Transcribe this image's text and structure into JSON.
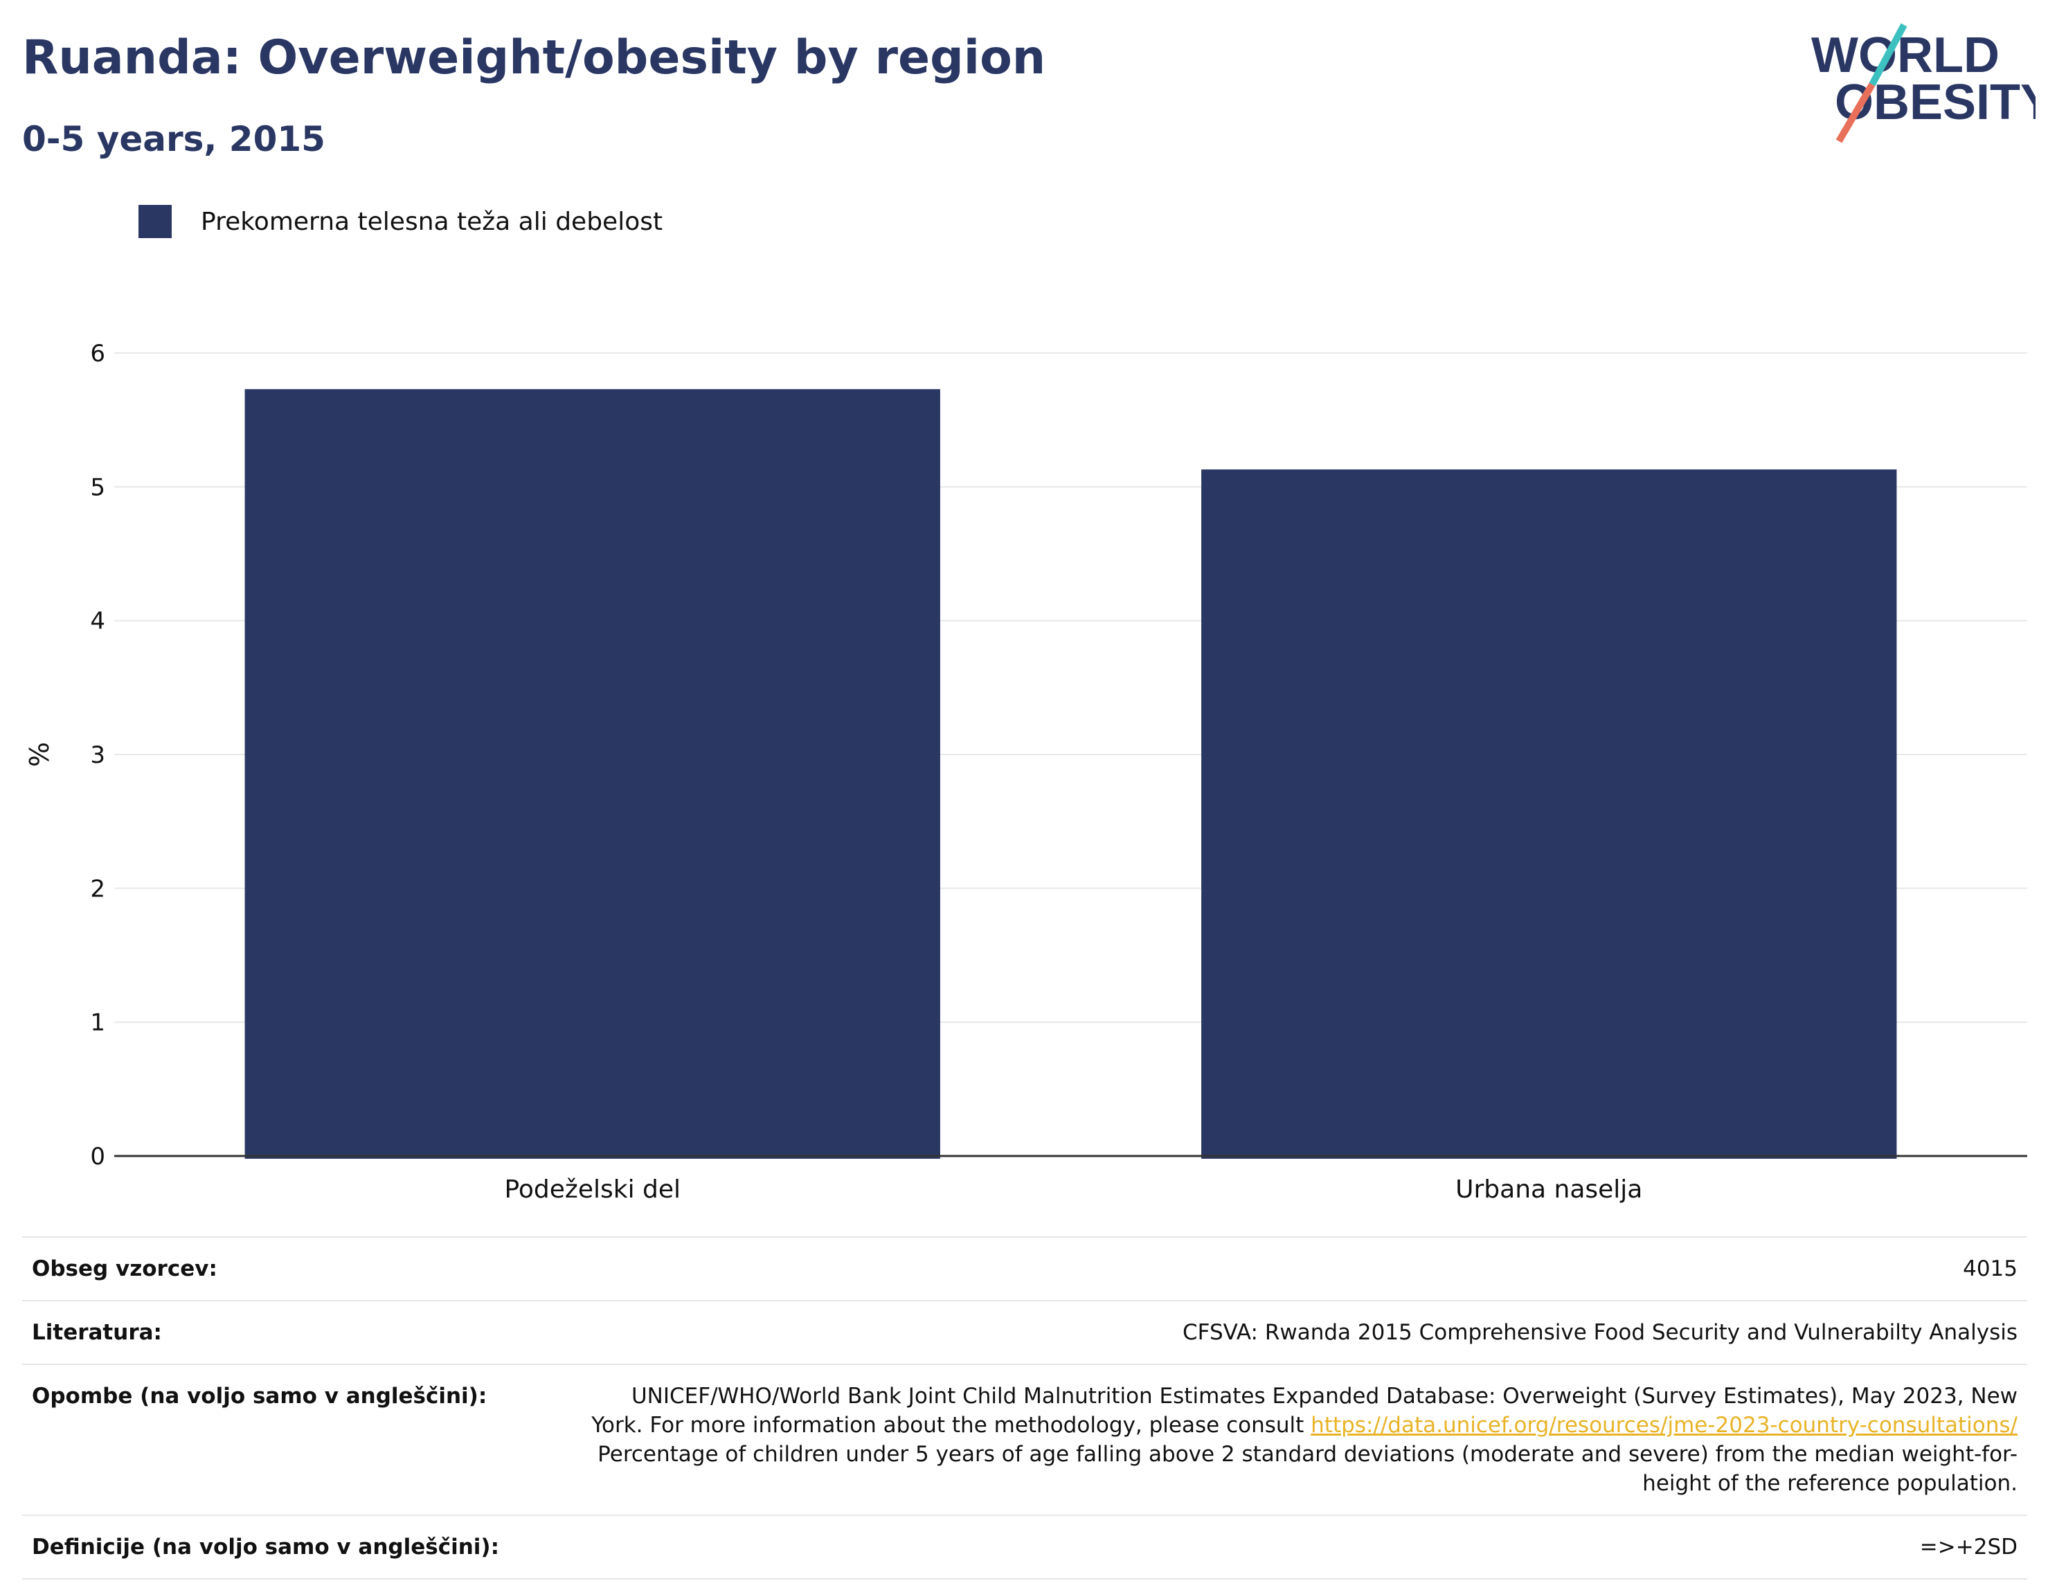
{
  "header": {
    "title": "Ruanda: Overweight/obesity by region",
    "subtitle": "0-5 years, 2015"
  },
  "logo": {
    "line1": "WORLD",
    "line2": "OBESITY",
    "colors": {
      "text": "#2a3763",
      "slash_top": "#3cc0c0",
      "slash_bottom": "#e8705a"
    }
  },
  "legend": {
    "label": "Prekomerna telesna teža ali debelost",
    "color": "#2a3763"
  },
  "chart_data": {
    "type": "bar",
    "categories": [
      "Podeželski del",
      "Urbana naselja"
    ],
    "series": [
      {
        "name": "Prekomerna telesna teža ali debelost",
        "values": [
          5.73,
          5.13
        ]
      }
    ],
    "ylabel": "%",
    "xlabel": "",
    "ylim": [
      0,
      6
    ],
    "yticks": [
      0,
      1,
      2,
      3,
      4,
      5,
      6
    ],
    "grid": true,
    "bar_color": "#2a3763"
  },
  "info": {
    "sample_label": "Obseg vzorcev:",
    "sample_value": "4015",
    "literature_label": "Literatura:",
    "literature_value": "CFSVA: Rwanda 2015 Comprehensive Food Security and Vulnerabilty Analysis",
    "notes_label": "Opombe (na voljo samo v angleščini):",
    "notes_text_1": "UNICEF/WHO/World Bank Joint Child Malnutrition Estimates Expanded Database: Overweight (Survey Estimates), May 2023, New York. For more information about the methodology, please consult ",
    "notes_link": "https://data.unicef.org/resources/jme-2023-country-consultations/",
    "notes_text_2": "Percentage of children under 5 years of age falling above 2 standard deviations (moderate and severe) from the median weight-for-height of the reference population.",
    "definitions_label": "Definicije (na voljo samo v angleščini):",
    "definitions_value": "=>+2SD"
  }
}
